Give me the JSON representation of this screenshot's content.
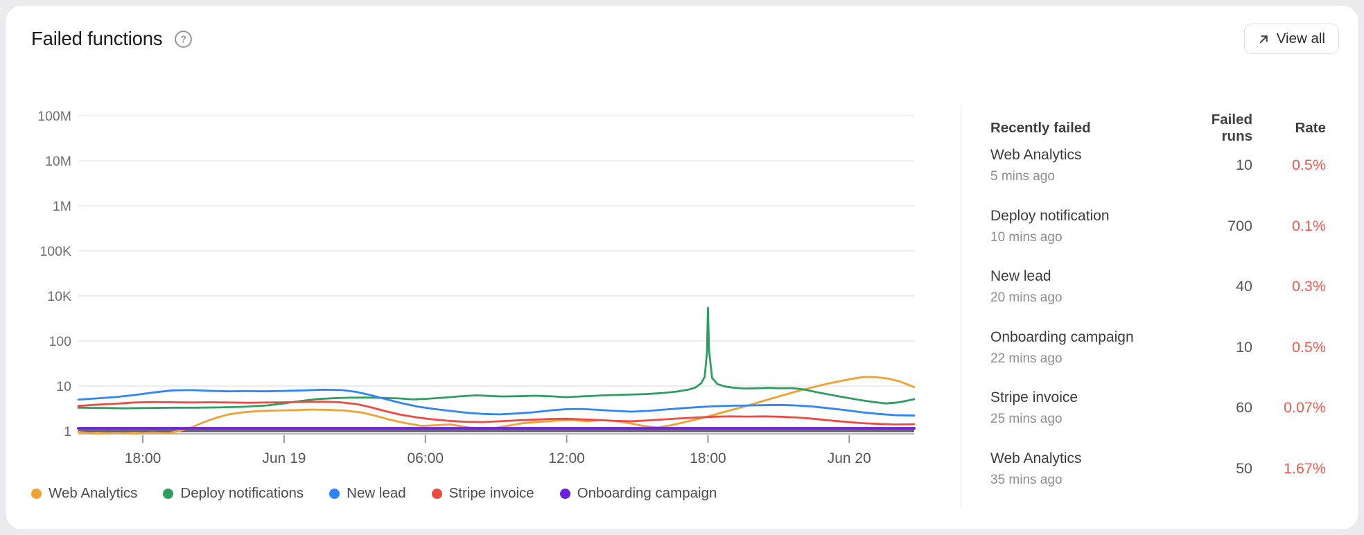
{
  "card": {
    "title": "Failed functions",
    "view_all_label": "View all"
  },
  "colors": {
    "page_bg": "#EBEBEE",
    "card_bg": "#FFFFFF",
    "card_border": "#E3E3E7",
    "grid": "#E8E8EA",
    "axis_dark": "#5A5A60",
    "axis_light": "#B4B4B9",
    "tick": "#9A9AA1",
    "y_label": "#6E6E75",
    "x_label": "#55555C",
    "title": "#1B1B1F",
    "muted_icon": "#96969C",
    "button_border": "#DFDFE3",
    "button_text": "#2B2B31",
    "header_text": "#3F3F46",
    "name_text": "#3A3A41",
    "time_text": "#8C8C93",
    "runs_text": "#55555C",
    "rate_text": "#F2584D",
    "legend_text": "#4A4A51",
    "divider": "#E7E7EA"
  },
  "chart_data": {
    "type": "line",
    "y_scale": "log",
    "x_hours_span": 35.5,
    "y_ticks": [
      {
        "v": 1,
        "label": "1"
      },
      {
        "v": 10,
        "label": "10"
      },
      {
        "v": 100,
        "label": "100"
      },
      {
        "v": 10000,
        "label": "10K"
      },
      {
        "v": 100000,
        "label": "100K"
      },
      {
        "v": 1000000,
        "label": "1M"
      },
      {
        "v": 10000000,
        "label": "10M"
      },
      {
        "v": 100000000,
        "label": "100M"
      }
    ],
    "x_ticks": [
      {
        "t": 2.74,
        "label": "18:00"
      },
      {
        "t": 8.74,
        "label": "Jun 19"
      },
      {
        "t": 14.74,
        "label": "06:00"
      },
      {
        "t": 20.74,
        "label": "12:00"
      },
      {
        "t": 26.74,
        "label": "18:00"
      },
      {
        "t": 32.74,
        "label": "Jun 20"
      }
    ],
    "series": [
      {
        "name": "Web Analytics",
        "color": "#F0A12F",
        "points": [
          [
            0,
            0.95
          ],
          [
            0.8,
            0.88
          ],
          [
            1.6,
            0.92
          ],
          [
            2.4,
            0.88
          ],
          [
            3.1,
            0.93
          ],
          [
            3.8,
            0.9
          ],
          [
            4.3,
            1.0
          ],
          [
            4.8,
            1.2
          ],
          [
            5.3,
            1.55
          ],
          [
            5.9,
            2.0
          ],
          [
            6.4,
            2.35
          ],
          [
            7.1,
            2.65
          ],
          [
            7.8,
            2.8
          ],
          [
            8.5,
            2.85
          ],
          [
            9.2,
            2.9
          ],
          [
            9.9,
            3.0
          ],
          [
            10.6,
            2.95
          ],
          [
            11.3,
            2.85
          ],
          [
            12,
            2.6
          ],
          [
            12.6,
            2.2
          ],
          [
            13.2,
            1.8
          ],
          [
            13.9,
            1.5
          ],
          [
            14.6,
            1.3
          ],
          [
            15.2,
            1.35
          ],
          [
            15.8,
            1.4
          ],
          [
            16.4,
            1.25
          ],
          [
            17,
            1.12
          ],
          [
            17.6,
            1.15
          ],
          [
            18.2,
            1.3
          ],
          [
            18.9,
            1.5
          ],
          [
            19.6,
            1.6
          ],
          [
            20.3,
            1.7
          ],
          [
            21,
            1.75
          ],
          [
            21.6,
            1.65
          ],
          [
            22.2,
            1.75
          ],
          [
            22.8,
            1.68
          ],
          [
            23.4,
            1.5
          ],
          [
            24,
            1.3
          ],
          [
            24.6,
            1.2
          ],
          [
            25.2,
            1.35
          ],
          [
            25.8,
            1.6
          ],
          [
            26.4,
            1.9
          ],
          [
            27,
            2.3
          ],
          [
            27.6,
            2.8
          ],
          [
            28.2,
            3.4
          ],
          [
            28.8,
            4.2
          ],
          [
            29.4,
            5.2
          ],
          [
            30,
            6.4
          ],
          [
            30.6,
            7.8
          ],
          [
            31.2,
            9.4
          ],
          [
            31.8,
            11.2
          ],
          [
            32.4,
            13
          ],
          [
            33,
            14.9
          ],
          [
            33.4,
            15.9
          ],
          [
            33.9,
            15.7
          ],
          [
            34.4,
            14.6
          ],
          [
            34.9,
            12.6
          ],
          [
            35.2,
            10.9
          ],
          [
            35.5,
            9.4
          ]
        ]
      },
      {
        "name": "Deploy notifications",
        "color": "#2E9E60",
        "points": [
          [
            0,
            3.3
          ],
          [
            1,
            3.25
          ],
          [
            2,
            3.2
          ],
          [
            3,
            3.25
          ],
          [
            4,
            3.3
          ],
          [
            5,
            3.3
          ],
          [
            6,
            3.35
          ],
          [
            7,
            3.45
          ],
          [
            8,
            3.7
          ],
          [
            8.7,
            4.1
          ],
          [
            9.4,
            4.6
          ],
          [
            10.1,
            5.1
          ],
          [
            10.8,
            5.35
          ],
          [
            11.5,
            5.5
          ],
          [
            12.2,
            5.55
          ],
          [
            12.9,
            5.45
          ],
          [
            13.6,
            5.3
          ],
          [
            14.2,
            5.05
          ],
          [
            14.8,
            5.2
          ],
          [
            15.5,
            5.5
          ],
          [
            16.2,
            5.9
          ],
          [
            16.9,
            6.2
          ],
          [
            17.4,
            6.05
          ],
          [
            18,
            5.85
          ],
          [
            18.7,
            5.95
          ],
          [
            19.4,
            6.1
          ],
          [
            20.1,
            5.9
          ],
          [
            20.7,
            5.65
          ],
          [
            21.3,
            5.85
          ],
          [
            22,
            6.1
          ],
          [
            22.7,
            6.3
          ],
          [
            23.4,
            6.45
          ],
          [
            24.1,
            6.6
          ],
          [
            24.8,
            7.0
          ],
          [
            25.4,
            7.5
          ],
          [
            25.9,
            8.3
          ],
          [
            26.2,
            9.2
          ],
          [
            26.45,
            11.5
          ],
          [
            26.6,
            16
          ],
          [
            26.7,
            55
          ],
          [
            26.74,
            3000
          ],
          [
            26.79,
            60
          ],
          [
            26.92,
            15
          ],
          [
            27.15,
            11
          ],
          [
            27.45,
            9.8
          ],
          [
            27.8,
            9.2
          ],
          [
            28.3,
            8.8
          ],
          [
            28.8,
            8.9
          ],
          [
            29.3,
            9.1
          ],
          [
            29.8,
            8.9
          ],
          [
            30.3,
            9.0
          ],
          [
            30.8,
            8.4
          ],
          [
            31.3,
            7.4
          ],
          [
            31.8,
            6.6
          ],
          [
            32.3,
            5.9
          ],
          [
            32.8,
            5.3
          ],
          [
            33.3,
            4.8
          ],
          [
            33.8,
            4.4
          ],
          [
            34.3,
            4.1
          ],
          [
            34.8,
            4.3
          ],
          [
            35.1,
            4.6
          ],
          [
            35.5,
            5.1
          ]
        ]
      },
      {
        "name": "New lead",
        "color": "#2E86F6",
        "points": [
          [
            0,
            5.0
          ],
          [
            0.8,
            5.3
          ],
          [
            1.6,
            5.7
          ],
          [
            2.4,
            6.3
          ],
          [
            3.2,
            7.2
          ],
          [
            4,
            8.0
          ],
          [
            4.8,
            8.1
          ],
          [
            5.6,
            7.8
          ],
          [
            6.4,
            7.6
          ],
          [
            7.2,
            7.7
          ],
          [
            8,
            7.6
          ],
          [
            8.8,
            7.8
          ],
          [
            9.6,
            8.0
          ],
          [
            10.4,
            8.3
          ],
          [
            11.2,
            8.1
          ],
          [
            11.8,
            7.4
          ],
          [
            12.4,
            6.3
          ],
          [
            13,
            5.2
          ],
          [
            13.7,
            4.2
          ],
          [
            14.4,
            3.5
          ],
          [
            15.1,
            3.1
          ],
          [
            15.8,
            2.8
          ],
          [
            16.5,
            2.55
          ],
          [
            17.2,
            2.4
          ],
          [
            17.9,
            2.35
          ],
          [
            18.6,
            2.45
          ],
          [
            19.3,
            2.6
          ],
          [
            20,
            2.85
          ],
          [
            20.7,
            3.05
          ],
          [
            21.4,
            3.1
          ],
          [
            22.1,
            2.95
          ],
          [
            22.8,
            2.8
          ],
          [
            23.5,
            2.7
          ],
          [
            24.2,
            2.8
          ],
          [
            24.9,
            3.0
          ],
          [
            25.6,
            3.2
          ],
          [
            26.3,
            3.4
          ],
          [
            27,
            3.55
          ],
          [
            27.7,
            3.65
          ],
          [
            28.4,
            3.7
          ],
          [
            29.1,
            3.75
          ],
          [
            29.8,
            3.8
          ],
          [
            30.5,
            3.7
          ],
          [
            31.2,
            3.5
          ],
          [
            31.9,
            3.2
          ],
          [
            32.6,
            2.9
          ],
          [
            33.3,
            2.6
          ],
          [
            34,
            2.4
          ],
          [
            34.7,
            2.25
          ],
          [
            35.5,
            2.2
          ]
        ]
      },
      {
        "name": "Stripe invoice",
        "color": "#EE4A41",
        "points": [
          [
            0,
            3.6
          ],
          [
            0.8,
            3.85
          ],
          [
            1.6,
            4.05
          ],
          [
            2.4,
            4.3
          ],
          [
            3.2,
            4.4
          ],
          [
            4,
            4.35
          ],
          [
            4.8,
            4.3
          ],
          [
            5.6,
            4.35
          ],
          [
            6.4,
            4.3
          ],
          [
            7.2,
            4.25
          ],
          [
            8,
            4.3
          ],
          [
            8.8,
            4.35
          ],
          [
            9.6,
            4.45
          ],
          [
            10.4,
            4.5
          ],
          [
            11.1,
            4.35
          ],
          [
            11.8,
            4.0
          ],
          [
            12.4,
            3.4
          ],
          [
            13,
            2.8
          ],
          [
            13.7,
            2.3
          ],
          [
            14.4,
            2.0
          ],
          [
            15.1,
            1.8
          ],
          [
            15.8,
            1.68
          ],
          [
            16.5,
            1.6
          ],
          [
            17.2,
            1.58
          ],
          [
            17.9,
            1.65
          ],
          [
            18.6,
            1.72
          ],
          [
            19.3,
            1.78
          ],
          [
            20,
            1.85
          ],
          [
            20.7,
            1.88
          ],
          [
            21.4,
            1.82
          ],
          [
            22.1,
            1.75
          ],
          [
            22.8,
            1.68
          ],
          [
            23.5,
            1.65
          ],
          [
            24.2,
            1.72
          ],
          [
            24.9,
            1.82
          ],
          [
            25.6,
            1.92
          ],
          [
            26.3,
            2.0
          ],
          [
            27,
            2.08
          ],
          [
            27.7,
            2.12
          ],
          [
            28.4,
            2.1
          ],
          [
            29.1,
            2.12
          ],
          [
            29.8,
            2.08
          ],
          [
            30.5,
            2.0
          ],
          [
            31.2,
            1.88
          ],
          [
            31.9,
            1.72
          ],
          [
            32.6,
            1.6
          ],
          [
            33.3,
            1.5
          ],
          [
            34,
            1.44
          ],
          [
            34.7,
            1.4
          ],
          [
            35.5,
            1.42
          ]
        ]
      },
      {
        "name": "Onboarding campaign",
        "color": "#6C1FE0",
        "points": [
          [
            0,
            1.15
          ],
          [
            35.5,
            1.15
          ]
        ]
      }
    ]
  },
  "table": {
    "headers": {
      "name": "Recently failed",
      "runs": "Failed runs",
      "rate": "Rate"
    },
    "rows": [
      {
        "name": "Web Analytics",
        "time": "5 mins ago",
        "runs": "10",
        "rate": "0.5%"
      },
      {
        "name": "Deploy notification",
        "time": "10 mins ago",
        "runs": "700",
        "rate": "0.1%"
      },
      {
        "name": "New lead",
        "time": "20 mins ago",
        "runs": "40",
        "rate": "0.3%"
      },
      {
        "name": "Onboarding campaign",
        "time": "22 mins ago",
        "runs": "10",
        "rate": "0.5%"
      },
      {
        "name": "Stripe invoice",
        "time": "25 mins ago",
        "runs": "60",
        "rate": "0.07%"
      },
      {
        "name": "Web Analytics",
        "time": "35 mins ago",
        "runs": "50",
        "rate": "1.67%"
      }
    ]
  }
}
